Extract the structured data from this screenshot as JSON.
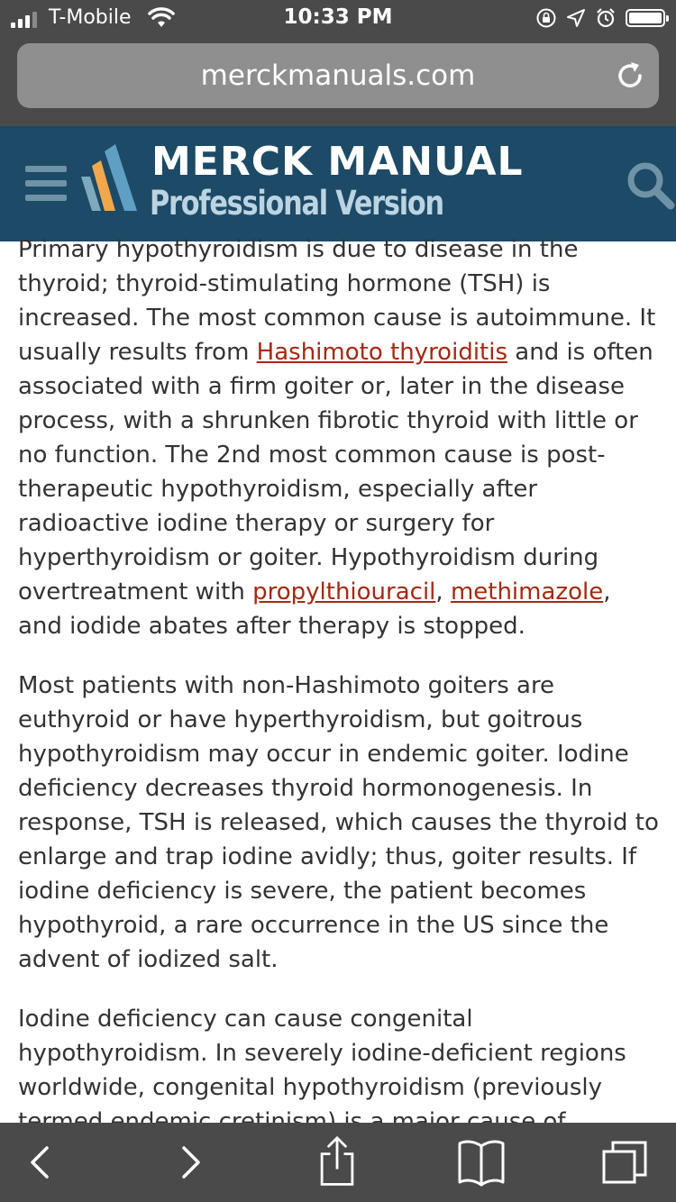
{
  "status_bar": {
    "carrier": "T-Mobile",
    "time": "10:33 PM"
  },
  "browser": {
    "url": "merckmanuals.com"
  },
  "site_header": {
    "title": "MERCK MANUAL",
    "subtitle": "Professional Version"
  },
  "article": {
    "p1": {
      "t1": "Primary hypothyroidism is due to disease in the thyroid; thyroid-stimulating hormone (TSH) is increased. The most common cause is autoimmune. It usually results from ",
      "link1": "Hashimoto thyroiditis",
      "t2": " and is often associated with a firm goiter or, later in the disease process, with a shrunken fibrotic thyroid with little or no function. The 2nd most common cause is post-therapeutic hypothyroidism, especially after radioactive iodine therapy or surgery for hyperthyroidism or goiter. Hypothyroidism during overtreatment with ",
      "link2": "propylthiouracil",
      "sep": ", ",
      "link3": "methimazole",
      "t3": ", and iodide abates after therapy is stopped."
    },
    "p2": "Most patients with non-Hashimoto goiters are euthyroid or have hyperthyroidism, but goitrous hypothyroidism may occur in endemic goiter. Iodine deficiency decreases thyroid hormonogenesis. In response, TSH is released, which causes the thyroid to enlarge and trap iodine avidly; thus, goiter results. If iodine deficiency is severe, the patient becomes hypothyroid, a rare occurrence in the US since the advent of iodized salt.",
    "p3": "Iodine deficiency can cause congenital hypothyroidism. In severely iodine-deficient regions worldwide, congenital hypothyroidism (previously termed endemic cretinism) is a major cause of"
  },
  "icons": {
    "menu": "hamburger-icon",
    "search": "search-icon",
    "reload": "reload-icon",
    "back": "chevron-left-icon",
    "forward": "chevron-right-icon",
    "share": "share-icon",
    "bookmarks": "book-icon",
    "tabs": "tabs-icon"
  },
  "colors": {
    "header_bg": "#1d4a66",
    "link": "#a32a12",
    "chrome_bg": "#4a4a4a"
  }
}
